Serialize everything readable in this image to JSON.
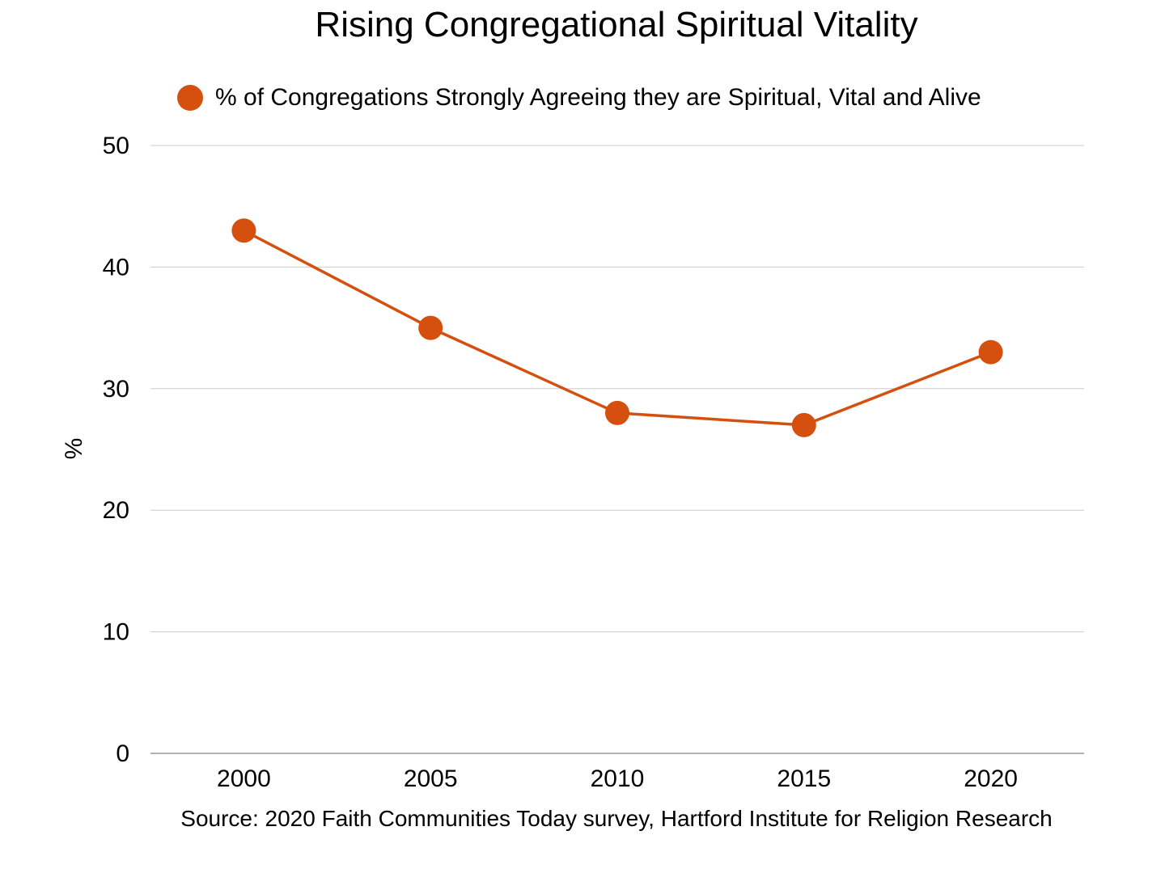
{
  "chart_data": {
    "type": "line",
    "title": "Rising Congregational Spiritual Vitality",
    "xlabel": "",
    "ylabel": "%",
    "categories": [
      "2000",
      "2005",
      "2010",
      "2015",
      "2020"
    ],
    "series": [
      {
        "name": "% of Congregations Strongly Agreeing they are Spiritual, Vital and Alive",
        "values": [
          43,
          35,
          28,
          27,
          33
        ],
        "color": "#D5500F"
      }
    ],
    "ylim": [
      0,
      50
    ],
    "yticks": [
      "0",
      "10",
      "20",
      "30",
      "40",
      "50"
    ],
    "grid": true,
    "legend_position": "top",
    "source": "Source: 2020 Faith Communities Today survey, Hartford Institute for Religion Research"
  }
}
